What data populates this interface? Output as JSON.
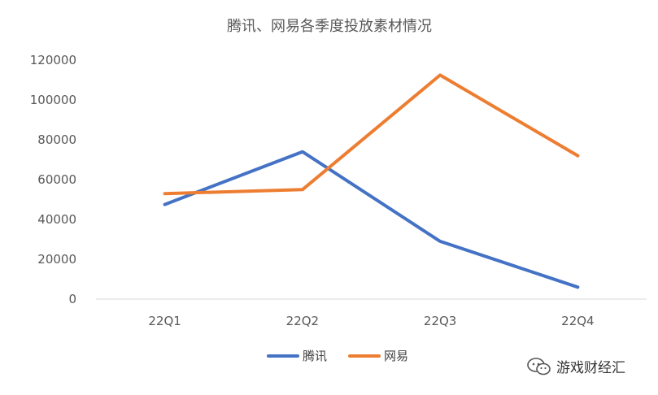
{
  "chart_data": {
    "type": "line",
    "title": "腾讯、网易各季度投放素材情况",
    "categories": [
      "22Q1",
      "22Q2",
      "22Q3",
      "22Q4"
    ],
    "series": [
      {
        "name": "腾讯",
        "values": [
          47500,
          74000,
          29000,
          6000
        ],
        "color": "#4472C4"
      },
      {
        "name": "网易",
        "values": [
          53000,
          55000,
          112500,
          72000
        ],
        "color": "#ED7D31"
      }
    ],
    "yticks": [
      0,
      20000,
      40000,
      60000,
      80000,
      100000,
      120000
    ],
    "ylim": [
      0,
      120000
    ],
    "grid": false,
    "legend": "bottom"
  },
  "watermark": {
    "text": "游戏财经汇",
    "icon": "wechat-icon"
  }
}
